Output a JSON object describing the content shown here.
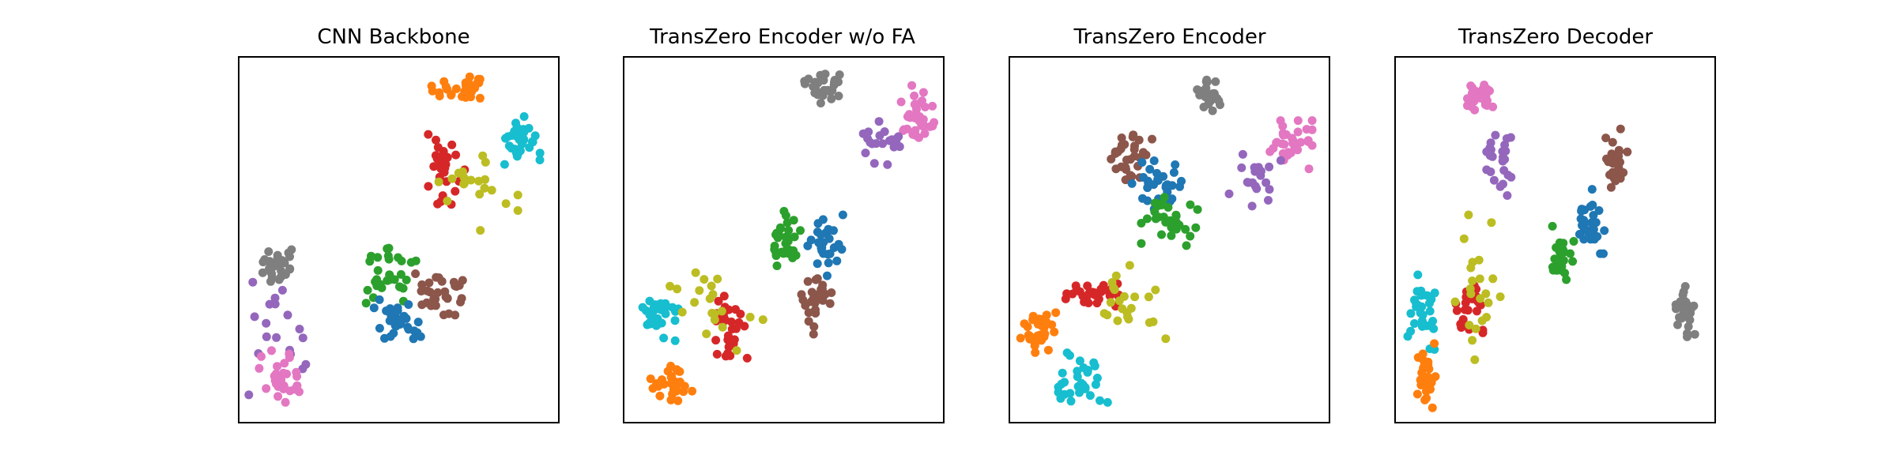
{
  "figure": {
    "colors": {
      "blue": "#1f77b4",
      "orange": "#ff7f0e",
      "green": "#2ca02c",
      "red": "#d62728",
      "purple": "#9467bd",
      "brown": "#8c564b",
      "pink": "#e377c2",
      "gray": "#7f7f7f",
      "olive": "#bcbd22",
      "cyan": "#17becf"
    }
  },
  "chart_data": [
    {
      "type": "scatter",
      "title": "CNN Backbone",
      "xlim": [
        0,
        100
      ],
      "ylim": [
        0,
        100
      ],
      "grid": false,
      "clusters": [
        {
          "color": "orange",
          "cx": 70,
          "cy": 91,
          "sx": 4.5,
          "sy": 2.5,
          "n": 28
        },
        {
          "color": "cyan",
          "cx": 87,
          "cy": 76,
          "sx": 3.5,
          "sy": 3.5,
          "n": 32
        },
        {
          "color": "red",
          "cx": 64,
          "cy": 69,
          "sx": 3.0,
          "sy": 5.0,
          "n": 30
        },
        {
          "color": "olive",
          "cx": 74,
          "cy": 63,
          "sx": 6.0,
          "sy": 5.0,
          "n": 20
        },
        {
          "color": "gray",
          "cx": 13,
          "cy": 43,
          "sx": 2.5,
          "sy": 3.0,
          "n": 30
        },
        {
          "color": "green",
          "cx": 47,
          "cy": 40,
          "sx": 4.0,
          "sy": 3.5,
          "n": 32
        },
        {
          "color": "brown",
          "cx": 64,
          "cy": 35,
          "sx": 4.0,
          "sy": 3.0,
          "n": 30
        },
        {
          "color": "blue",
          "cx": 50,
          "cy": 27,
          "sx": 3.5,
          "sy": 3.0,
          "n": 30
        },
        {
          "color": "purple",
          "cx": 13,
          "cy": 23,
          "sx": 5.0,
          "sy": 7.0,
          "n": 18
        },
        {
          "color": "pink",
          "cx": 13,
          "cy": 12,
          "sx": 3.0,
          "sy": 3.5,
          "n": 30
        }
      ]
    },
    {
      "type": "scatter",
      "title": "TransZero Encoder w/o FA",
      "xlim": [
        0,
        100
      ],
      "ylim": [
        0,
        100
      ],
      "grid": false,
      "clusters": [
        {
          "color": "gray",
          "cx": 62,
          "cy": 91,
          "sx": 2.5,
          "sy": 2.0,
          "n": 30
        },
        {
          "color": "pink",
          "cx": 91,
          "cy": 85,
          "sx": 3.0,
          "sy": 3.5,
          "n": 34
        },
        {
          "color": "purple",
          "cx": 80,
          "cy": 78,
          "sx": 3.5,
          "sy": 3.5,
          "n": 20
        },
        {
          "color": "green",
          "cx": 51,
          "cy": 49,
          "sx": 2.5,
          "sy": 4.0,
          "n": 30
        },
        {
          "color": "blue",
          "cx": 63,
          "cy": 48,
          "sx": 2.5,
          "sy": 4.0,
          "n": 28
        },
        {
          "color": "brown",
          "cx": 61,
          "cy": 33,
          "sx": 2.5,
          "sy": 4.0,
          "n": 26
        },
        {
          "color": "cyan",
          "cx": 11,
          "cy": 29,
          "sx": 3.0,
          "sy": 3.0,
          "n": 30
        },
        {
          "color": "red",
          "cx": 32,
          "cy": 26,
          "sx": 3.0,
          "sy": 4.5,
          "n": 32
        },
        {
          "color": "olive",
          "cx": 27,
          "cy": 32,
          "sx": 8.0,
          "sy": 8.0,
          "n": 20
        },
        {
          "color": "orange",
          "cx": 15,
          "cy": 11,
          "sx": 3.0,
          "sy": 2.5,
          "n": 32
        }
      ]
    },
    {
      "type": "scatter",
      "title": "TransZero Encoder",
      "xlim": [
        0,
        100
      ],
      "ylim": [
        0,
        100
      ],
      "grid": false,
      "clusters": [
        {
          "color": "gray",
          "cx": 62,
          "cy": 90,
          "sx": 2.5,
          "sy": 2.5,
          "n": 30
        },
        {
          "color": "pink",
          "cx": 88,
          "cy": 76,
          "sx": 3.0,
          "sy": 3.0,
          "n": 32
        },
        {
          "color": "purple",
          "cx": 76,
          "cy": 68,
          "sx": 4.0,
          "sy": 4.0,
          "n": 20
        },
        {
          "color": "brown",
          "cx": 37,
          "cy": 73,
          "sx": 3.5,
          "sy": 3.0,
          "n": 30
        },
        {
          "color": "blue",
          "cx": 46,
          "cy": 65,
          "sx": 3.5,
          "sy": 3.0,
          "n": 30
        },
        {
          "color": "green",
          "cx": 50,
          "cy": 55,
          "sx": 4.0,
          "sy": 3.0,
          "n": 32
        },
        {
          "color": "red",
          "cx": 27,
          "cy": 35,
          "sx": 4.5,
          "sy": 1.5,
          "n": 32
        },
        {
          "color": "olive",
          "cx": 37,
          "cy": 32,
          "sx": 7.0,
          "sy": 5.0,
          "n": 22
        },
        {
          "color": "orange",
          "cx": 9,
          "cy": 25,
          "sx": 2.5,
          "sy": 3.0,
          "n": 32
        },
        {
          "color": "cyan",
          "cx": 23,
          "cy": 12,
          "sx": 3.5,
          "sy": 4.0,
          "n": 32
        }
      ]
    },
    {
      "type": "scatter",
      "title": "TransZero Decoder",
      "xlim": [
        0,
        100
      ],
      "ylim": [
        0,
        100
      ],
      "grid": false,
      "clusters": [
        {
          "color": "pink",
          "cx": 27,
          "cy": 89,
          "sx": 2.0,
          "sy": 2.0,
          "n": 34
        },
        {
          "color": "purple",
          "cx": 33,
          "cy": 72,
          "sx": 2.0,
          "sy": 4.5,
          "n": 26
        },
        {
          "color": "brown",
          "cx": 69,
          "cy": 72,
          "sx": 1.8,
          "sy": 4.0,
          "n": 30
        },
        {
          "color": "blue",
          "cx": 61,
          "cy": 55,
          "sx": 2.0,
          "sy": 4.0,
          "n": 30
        },
        {
          "color": "green",
          "cx": 52,
          "cy": 46,
          "sx": 2.0,
          "sy": 3.5,
          "n": 28
        },
        {
          "color": "gray",
          "cx": 91,
          "cy": 31,
          "sx": 1.5,
          "sy": 3.5,
          "n": 30
        },
        {
          "color": "cyan",
          "cx": 8,
          "cy": 31,
          "sx": 2.0,
          "sy": 5.0,
          "n": 30
        },
        {
          "color": "red",
          "cx": 23,
          "cy": 31,
          "sx": 2.0,
          "sy": 5.0,
          "n": 30
        },
        {
          "color": "olive",
          "cx": 26,
          "cy": 37,
          "sx": 4.0,
          "sy": 9.0,
          "n": 22
        },
        {
          "color": "orange",
          "cx": 10,
          "cy": 12,
          "sx": 1.5,
          "sy": 4.5,
          "n": 28
        }
      ]
    }
  ]
}
